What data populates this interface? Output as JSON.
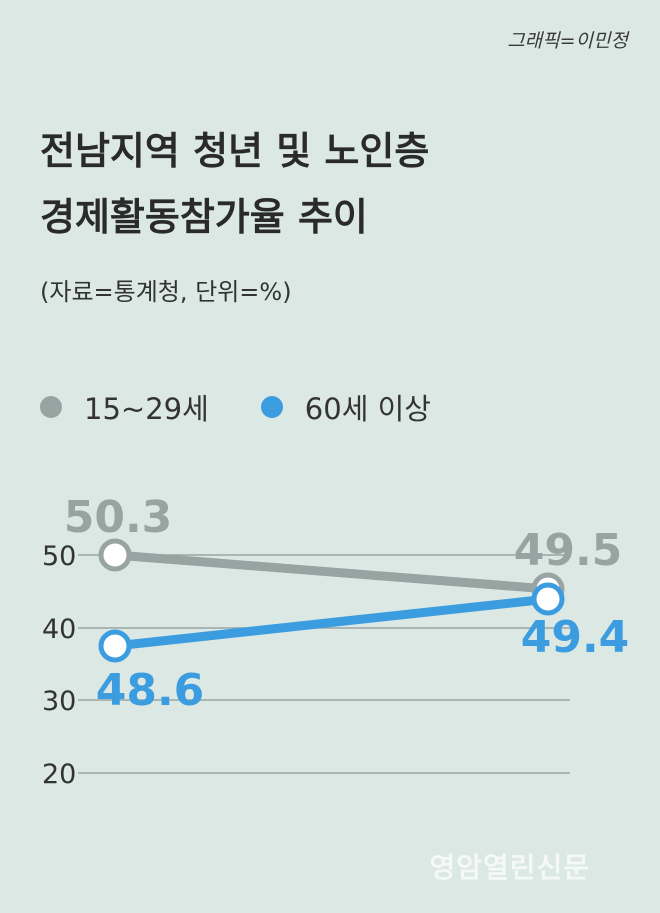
{
  "credit": "그래픽=이민정",
  "title_line1": "전남지역 청년 및 노인층",
  "title_line2": "경제활동참가율 추이",
  "source": "(자료=통계청, 단위=%)",
  "watermark": "영암열린신문",
  "colors": {
    "gray": "#98a4a2",
    "blue": "#3b9de0",
    "grid": "#9aa5a3",
    "background": "#dbe8e4"
  },
  "chart_data": {
    "type": "line",
    "yticks": [
      "50",
      "40",
      "30",
      "20"
    ],
    "series": [
      {
        "name": "15~29세",
        "color": "#98a4a2",
        "values": [
          50.3,
          49.5
        ],
        "labels": [
          "50.3",
          "49.5"
        ]
      },
      {
        "name": "60세 이상",
        "color": "#3b9de0",
        "values": [
          48.6,
          49.4
        ],
        "labels": [
          "48.6",
          "49.4"
        ]
      }
    ]
  }
}
